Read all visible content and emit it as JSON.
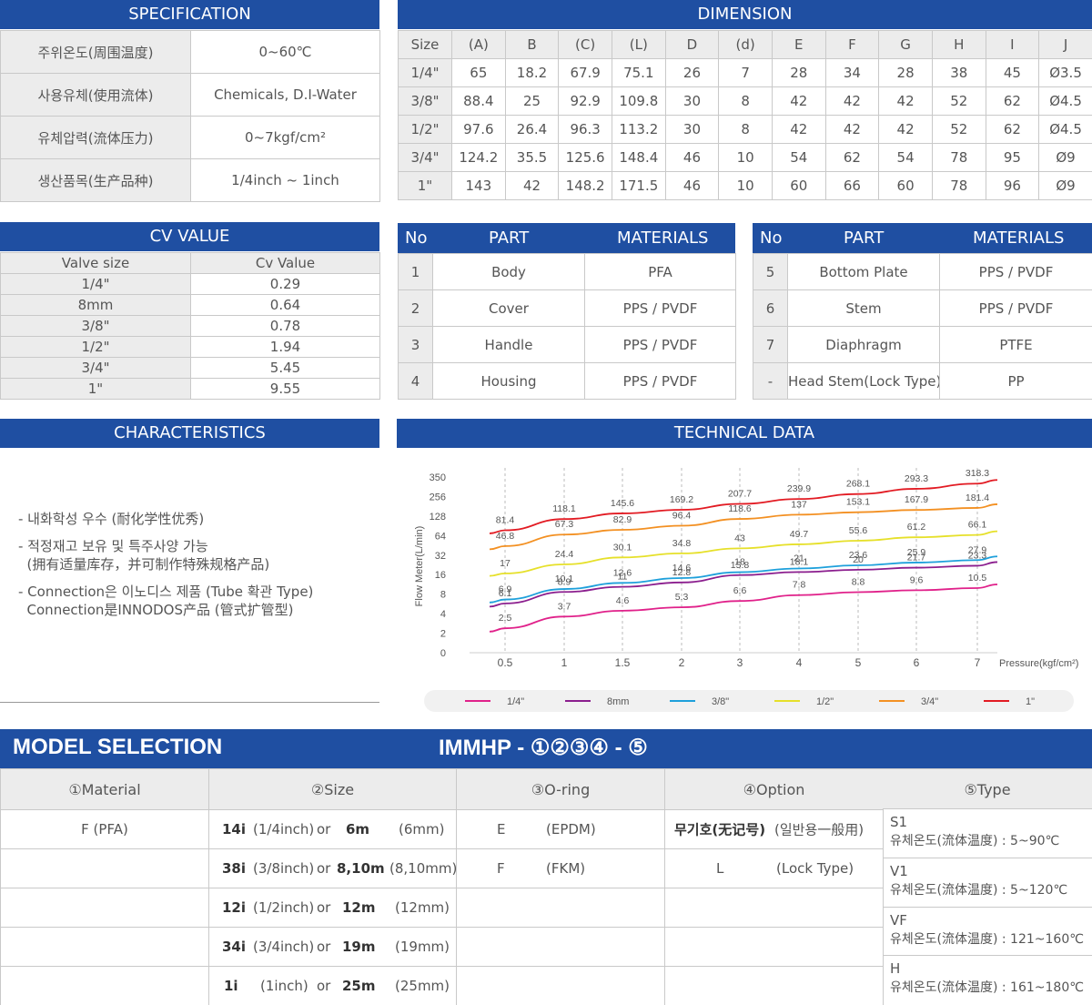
{
  "spec": {
    "title": "SPECIFICATION",
    "rows": [
      {
        "label": "주위온도(周围温度)",
        "value": "0~60℃"
      },
      {
        "label": "사용유체(使用流体)",
        "value": "Chemicals, D.I-Water"
      },
      {
        "label": "유체압력(流体压力)",
        "value": "0~7kgf/cm²"
      },
      {
        "label": "생산품목(生产品种)",
        "value": "1/4inch ~ 1inch"
      }
    ]
  },
  "dimension": {
    "title": "DIMENSION",
    "headers": [
      "Size",
      "(A)",
      "B",
      "(C)",
      "(L)",
      "D",
      "(d)",
      "E",
      "F",
      "G",
      "H",
      "I",
      "J"
    ],
    "rows": [
      [
        "1/4\"",
        "65",
        "18.2",
        "67.9",
        "75.1",
        "26",
        "7",
        "28",
        "34",
        "28",
        "38",
        "45",
        "Ø3.5"
      ],
      [
        "3/8\"",
        "88.4",
        "25",
        "92.9",
        "109.8",
        "30",
        "8",
        "42",
        "42",
        "42",
        "52",
        "62",
        "Ø4.5"
      ],
      [
        "1/2\"",
        "97.6",
        "26.4",
        "96.3",
        "113.2",
        "30",
        "8",
        "42",
        "42",
        "42",
        "52",
        "62",
        "Ø4.5"
      ],
      [
        "3/4\"",
        "124.2",
        "35.5",
        "125.6",
        "148.4",
        "46",
        "10",
        "54",
        "62",
        "54",
        "78",
        "95",
        "Ø9"
      ],
      [
        "1\"",
        "143",
        "42",
        "148.2",
        "171.5",
        "46",
        "10",
        "60",
        "66",
        "60",
        "78",
        "96",
        "Ø9"
      ]
    ]
  },
  "cv": {
    "title": "CV VALUE",
    "headers": [
      "Valve size",
      "Cv Value"
    ],
    "rows": [
      [
        "1/4\"",
        "0.29"
      ],
      [
        "8mm",
        "0.64"
      ],
      [
        "3/8\"",
        "0.78"
      ],
      [
        "1/2\"",
        "1.94"
      ],
      [
        "3/4\"",
        "5.45"
      ],
      [
        "1\"",
        "9.55"
      ]
    ]
  },
  "parts_left": {
    "headers": [
      "No",
      "PART",
      "MATERIALS"
    ],
    "rows": [
      [
        "1",
        "Body",
        "PFA"
      ],
      [
        "2",
        "Cover",
        "PPS / PVDF"
      ],
      [
        "3",
        "Handle",
        "PPS / PVDF"
      ],
      [
        "4",
        "Housing",
        "PPS / PVDF"
      ]
    ]
  },
  "parts_right": {
    "headers": [
      "No",
      "PART",
      "MATERIALS"
    ],
    "rows": [
      [
        "5",
        "Bottom Plate",
        "PPS / PVDF"
      ],
      [
        "6",
        "Stem",
        "PPS / PVDF"
      ],
      [
        "7",
        "Diaphragm",
        "PTFE"
      ],
      [
        "-",
        "Head Stem(Lock Type)",
        "PP"
      ]
    ]
  },
  "characteristics": {
    "title": "CHARACTERISTICS",
    "items": [
      "- 내화학성 우수 (耐化学性优秀)",
      "- 적정재고 보유 및 특주사양 가능\n  (拥有适量库存，并可制作特殊规格产品)",
      "- Connection은 이노디스 제품 (Tube 확관 Type)\n  Connection是INNODOS产品 (管式扩管型)"
    ]
  },
  "technical": {
    "title": "TECHNICAL DATA"
  },
  "chart_data": {
    "type": "line",
    "xlabel": "Pressure(kgf/cm²)",
    "ylabel": "Flow Meter(L/min)",
    "x": [
      0.5,
      1,
      1.5,
      2,
      3,
      4,
      5,
      6,
      7
    ],
    "x_ticks": [
      "0.5",
      "1",
      "1.5",
      "2",
      "3",
      "4",
      "5",
      "6",
      "7"
    ],
    "y_ticks": [
      "0",
      "2",
      "4",
      "8",
      "16",
      "32",
      "64",
      "128",
      "256",
      "350"
    ],
    "series": [
      {
        "name": "1/4\"",
        "color": "#e0218a",
        "values": [
          2.5,
          3.7,
          4.6,
          5.3,
          6.6,
          7.8,
          8.8,
          9.6,
          10.5
        ]
      },
      {
        "name": "8mm",
        "color": "#8b1e8e",
        "values": [
          6.1,
          8.9,
          11,
          12.8,
          15.8,
          18.1,
          20,
          21.7,
          23.3
        ]
      },
      {
        "name": "3/8\"",
        "color": "#1ea0db",
        "values": [
          6.9,
          10.1,
          12.6,
          14.6,
          18,
          21,
          23.6,
          25.9,
          27.9
        ]
      },
      {
        "name": "1/2\"",
        "color": "#e6e02a",
        "values": [
          17,
          24.4,
          30.1,
          34.8,
          43,
          49.7,
          55.6,
          61.2,
          66.1
        ]
      },
      {
        "name": "3/4\"",
        "color": "#f39022",
        "values": [
          46.8,
          67.3,
          82.9,
          96.4,
          118.6,
          137,
          153.1,
          167.9,
          181.4
        ]
      },
      {
        "name": "1\"",
        "color": "#e21b23",
        "values": [
          81.4,
          118.1,
          145.6,
          169.2,
          207.7,
          239.9,
          268.1,
          293.3,
          318.3
        ]
      }
    ]
  },
  "model": {
    "title": "MODEL SELECTION",
    "code": "IMMHP - ①②③④ - ⑤",
    "headers": [
      "①Material",
      "②Size",
      "③O-ring",
      "④Option",
      "⑤Type"
    ],
    "material": [
      "F (PFA)"
    ],
    "sizes": [
      {
        "a": "14i",
        "b": "(1/4inch)",
        "or": "or",
        "c": "6m",
        "d": "(6mm)"
      },
      {
        "a": "38i",
        "b": "(3/8inch)",
        "or": "or",
        "c": "8,10m",
        "d": "(8,10mm)"
      },
      {
        "a": "12i",
        "b": "(1/2inch)",
        "or": "or",
        "c": "12m",
        "d": "(12mm)"
      },
      {
        "a": "34i",
        "b": "(3/4inch)",
        "or": "or",
        "c": "19m",
        "d": "(19mm)"
      },
      {
        "a": "1i",
        "b": "(1inch)",
        "or": "or",
        "c": "25m",
        "d": "(25mm)"
      }
    ],
    "orings": [
      {
        "code": "E",
        "name": "(EPDM)"
      },
      {
        "code": "F",
        "name": "(FKM)"
      }
    ],
    "options": [
      {
        "code": "무기호(无记号)",
        "name": "(일반용一般用)"
      },
      {
        "code": "L",
        "name": "(Lock Type)"
      }
    ],
    "types": [
      {
        "code": "S1",
        "desc": "유체온도(流体温度) : 5~90℃"
      },
      {
        "code": "V1",
        "desc": "유체온도(流体温度) : 5~120℃"
      },
      {
        "code": "VF",
        "desc": "유체온도(流体温度) : 121~160℃"
      },
      {
        "code": "H",
        "desc": "유체온도(流体温度) : 161~180℃"
      }
    ]
  }
}
